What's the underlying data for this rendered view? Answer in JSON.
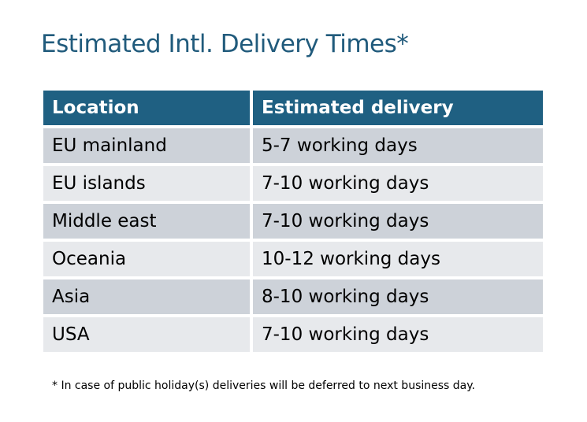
{
  "title": "Estimated Intl. Delivery Times*",
  "table": {
    "headers": [
      "Location",
      "Estimated delivery"
    ],
    "rows": [
      [
        "EU mainland",
        "5-7 working days"
      ],
      [
        "EU islands",
        "7-10 working days"
      ],
      [
        "Middle east",
        "7-10 working days"
      ],
      [
        "Oceania",
        "10-12 working days"
      ],
      [
        "Asia",
        "8-10 working days"
      ],
      [
        "USA",
        "7-10 working days"
      ]
    ]
  },
  "footnote": "* In case of public holiday(s) deliveries will be deferred to next business day.",
  "colors": {
    "header": "#1f6082",
    "row_dark": "#cdd2d9",
    "row_light": "#e7e9ec",
    "title": "#215b7c"
  }
}
